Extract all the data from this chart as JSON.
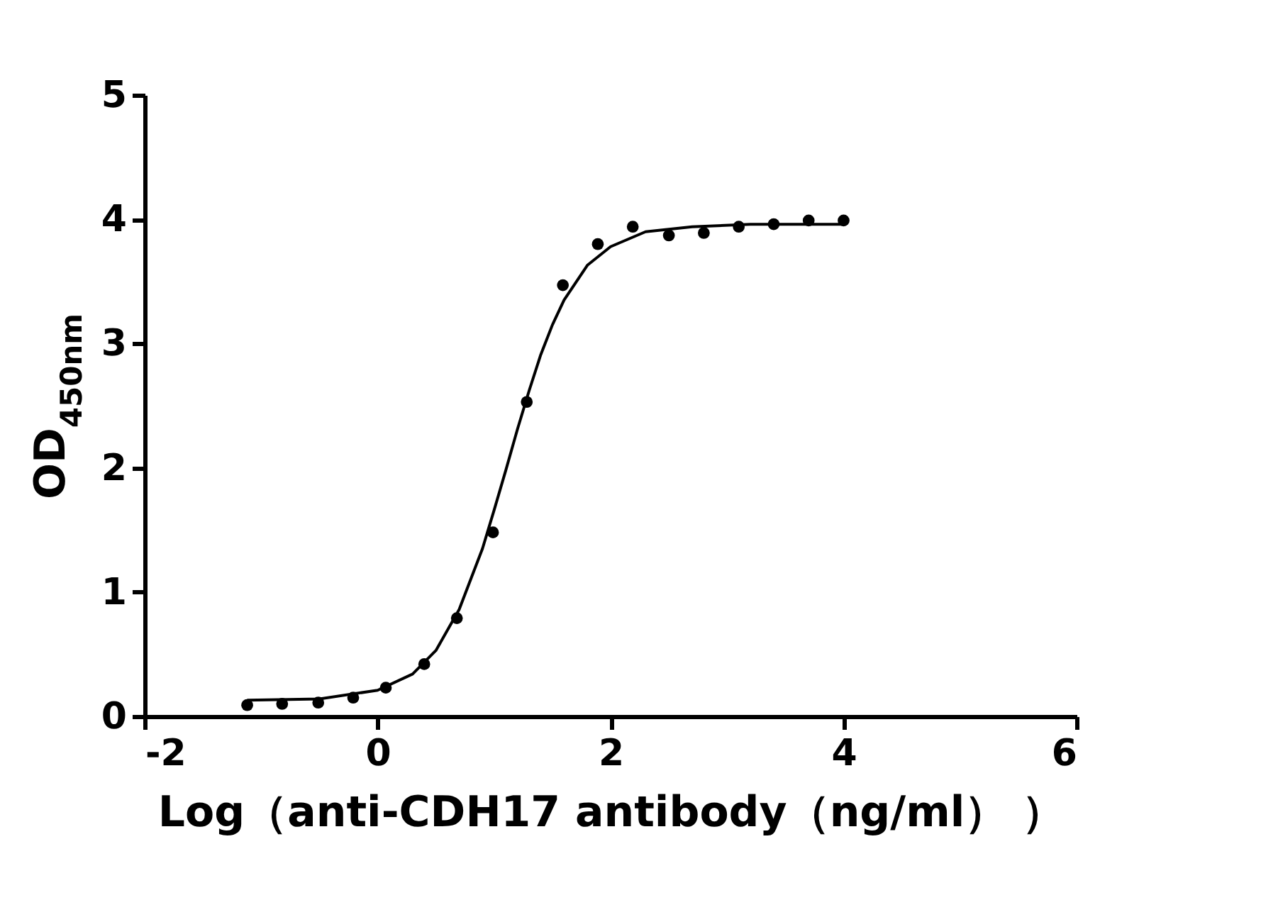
{
  "chart_data": {
    "type": "scatter",
    "xlabel": "Log（anti-CDH17 antibody（ng/ml）  ）",
    "ylabel": "OD$_{450nm}$",
    "xlim": [
      -2,
      6
    ],
    "xticks": [
      -2,
      0,
      2,
      4,
      6
    ],
    "ylim": [
      0,
      5
    ],
    "yticks": [
      0,
      1,
      2,
      3,
      4,
      5
    ],
    "grid": false,
    "series": [
      {
        "type": "scatter",
        "marker": "circle",
        "color": "#000000",
        "x": [
          -1.12,
          -0.82,
          -0.51,
          -0.21,
          0.07,
          0.4,
          0.68,
          0.99,
          1.28,
          1.59,
          1.89,
          2.19,
          2.5,
          2.8,
          3.1,
          3.4,
          3.7,
          4.0
        ],
        "values": [
          0.09,
          0.1,
          0.11,
          0.15,
          0.23,
          0.42,
          0.79,
          1.48,
          2.53,
          3.47,
          3.8,
          3.94,
          3.87,
          3.89,
          3.94,
          3.96,
          3.99,
          3.99
        ]
      },
      {
        "type": "line",
        "marker": "none",
        "line_style": "solid",
        "color": "#000000",
        "x": [
          -1.12,
          -0.5,
          0,
          0.3,
          0.5,
          0.7,
          0.9,
          1.0,
          1.1,
          1.2,
          1.3,
          1.4,
          1.5,
          1.6,
          1.8,
          2.0,
          2.3,
          2.7,
          3.2,
          4.0
        ],
        "values": [
          0.13,
          0.14,
          0.21,
          0.34,
          0.53,
          0.86,
          1.35,
          1.66,
          1.98,
          2.31,
          2.62,
          2.91,
          3.15,
          3.35,
          3.63,
          3.78,
          3.9,
          3.94,
          3.96,
          3.96
        ]
      }
    ]
  }
}
